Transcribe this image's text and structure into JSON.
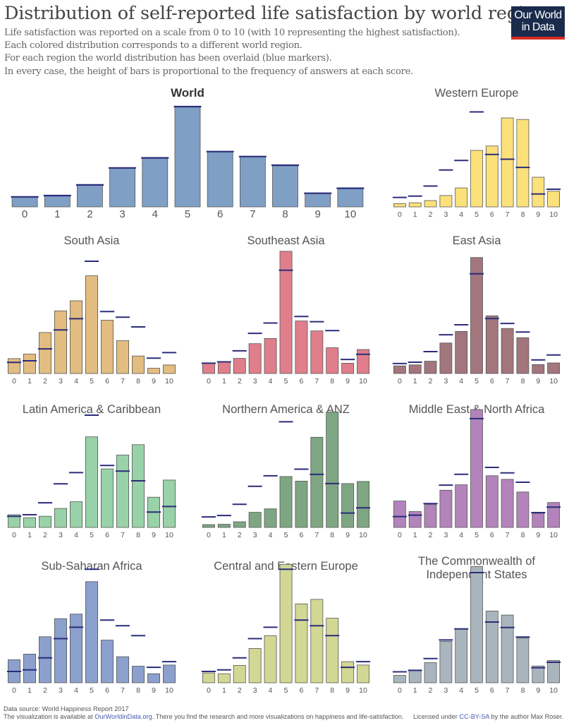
{
  "header": {
    "title": "Distribution of self-reported life satisfaction by world region",
    "subtitle_lines": [
      "Life satisfaction was reported on a scale from 0 to 10 (with 10 representing the highest satisfaction).",
      "Each colored distribution corresponds to a different world region.",
      "For each region the world distribution has been overlaid (blue markers).",
      "In every case, the height of bars is proportional to the frequency of answers at each score."
    ],
    "logo_line1": "Our World",
    "logo_line2": "in Data"
  },
  "footer": {
    "source": "Data source: World Happiness Report 2017",
    "availability_prefix": "The visualization is available at ",
    "availability_link": "OurWorldinData.org",
    "availability_suffix": ". There you find the research and more visualizations on happiness and life-satisfaction.",
    "license_prefix": "Licensed under ",
    "license_link": "CC-BY-SA",
    "license_suffix": " by the author Max Roser."
  },
  "colors": {
    "world_marker": "#2b2c7a",
    "bar_stroke": "#555555"
  },
  "chart_data": [
    {
      "type": "bar",
      "title": "World",
      "categories": [
        "0",
        "1",
        "2",
        "3",
        "4",
        "5",
        "6",
        "7",
        "8",
        "9",
        "10"
      ],
      "color": "#7f9fc5",
      "values": [
        3.0,
        3.4,
        6.6,
        11.7,
        14.7,
        30.1,
        16.6,
        15.1,
        12.5,
        4.1,
        5.6
      ],
      "world_values": [
        3.0,
        3.4,
        6.6,
        11.7,
        14.7,
        30.1,
        16.6,
        15.1,
        12.5,
        4.1,
        5.6
      ],
      "ylim": [
        0,
        32
      ]
    },
    {
      "type": "bar",
      "title": "Western Europe",
      "categories": [
        "0",
        "1",
        "2",
        "3",
        "4",
        "5",
        "6",
        "7",
        "8",
        "9",
        "10"
      ],
      "color": "#fce17a",
      "values": [
        1.0,
        1.3,
        2.0,
        3.6,
        6.0,
        17.9,
        19.3,
        28.2,
        27.7,
        9.4,
        5.0
      ],
      "world_values": [
        3.0,
        3.4,
        6.6,
        11.7,
        14.7,
        30.1,
        16.6,
        15.1,
        12.5,
        4.1,
        5.6
      ],
      "ylim": [
        0,
        32
      ]
    },
    {
      "type": "bar",
      "title": "South Asia",
      "categories": [
        "0",
        "1",
        "2",
        "3",
        "4",
        "5",
        "6",
        "7",
        "8",
        "9",
        "10"
      ],
      "color": "#e3bc81",
      "values": [
        4.0,
        5.2,
        11.0,
        16.8,
        19.5,
        26.2,
        14.3,
        8.8,
        4.7,
        1.4,
        2.3
      ],
      "world_values": [
        3.0,
        3.4,
        6.6,
        11.7,
        14.7,
        30.1,
        16.6,
        15.1,
        12.5,
        4.1,
        5.6
      ],
      "ylim": [
        0,
        32
      ]
    },
    {
      "type": "bar",
      "title": "Southeast Asia",
      "categories": [
        "0",
        "1",
        "2",
        "3",
        "4",
        "5",
        "6",
        "7",
        "8",
        "9",
        "10"
      ],
      "color": "#e07e8c",
      "values": [
        3.0,
        3.4,
        4.4,
        8.7,
        10.2,
        35.6,
        15.3,
        12.4,
        7.5,
        3.0,
        7.0
      ],
      "world_values": [
        3.0,
        3.4,
        6.6,
        11.7,
        14.7,
        30.1,
        16.6,
        15.1,
        12.5,
        4.1,
        5.6
      ],
      "ylim": [
        0,
        36
      ]
    },
    {
      "type": "bar",
      "title": "East Asia",
      "categories": [
        "0",
        "1",
        "2",
        "3",
        "4",
        "5",
        "6",
        "7",
        "8",
        "9",
        "10"
      ],
      "color": "#a2767c",
      "values": [
        2.3,
        2.6,
        3.7,
        9.2,
        12.7,
        35.0,
        17.4,
        13.6,
        10.8,
        2.7,
        3.2
      ],
      "world_values": [
        3.0,
        3.4,
        6.6,
        11.7,
        14.7,
        30.1,
        16.6,
        15.1,
        12.5,
        4.1,
        5.6
      ],
      "ylim": [
        0,
        36
      ]
    },
    {
      "type": "bar",
      "title": "Latin America & Caribbean",
      "categories": [
        "0",
        "1",
        "2",
        "3",
        "4",
        "5",
        "6",
        "7",
        "8",
        "9",
        "10"
      ],
      "color": "#99d2a8",
      "values": [
        3.4,
        2.6,
        3.0,
        5.1,
        6.9,
        24.3,
        15.7,
        19.4,
        22.2,
        8.1,
        12.7
      ],
      "world_values": [
        3.0,
        3.4,
        6.6,
        11.7,
        14.7,
        30.1,
        16.6,
        15.1,
        12.5,
        4.1,
        5.6
      ],
      "ylim": [
        0,
        32
      ]
    },
    {
      "type": "bar",
      "title": "Northern America & ANZ",
      "categories": [
        "0",
        "1",
        "2",
        "3",
        "4",
        "5",
        "6",
        "7",
        "8",
        "9",
        "10"
      ],
      "color": "#7ea683",
      "values": [
        0.8,
        0.9,
        1.6,
        4.3,
        5.3,
        14.5,
        13.2,
        25.7,
        32.9,
        12.5,
        13.1
      ],
      "world_values": [
        3.0,
        3.4,
        6.6,
        11.7,
        14.7,
        30.1,
        16.6,
        15.1,
        12.5,
        4.1,
        5.6
      ],
      "ylim": [
        0,
        34
      ]
    },
    {
      "type": "bar",
      "title": "Middle East & North Africa",
      "categories": [
        "0",
        "1",
        "2",
        "3",
        "4",
        "5",
        "6",
        "7",
        "8",
        "9",
        "10"
      ],
      "color": "#b284bb",
      "values": [
        7.3,
        4.4,
        6.3,
        10.3,
        11.8,
        32.6,
        14.3,
        13.3,
        9.8,
        3.9,
        6.9
      ],
      "world_values": [
        3.0,
        3.4,
        6.6,
        11.7,
        14.7,
        30.1,
        16.6,
        15.1,
        12.5,
        4.1,
        5.6
      ],
      "ylim": [
        0,
        33
      ]
    },
    {
      "type": "bar",
      "title": "Sub-Saharan Africa",
      "categories": [
        "0",
        "1",
        "2",
        "3",
        "4",
        "5",
        "6",
        "7",
        "8",
        "9",
        "10"
      ],
      "color": "#8ba0cd",
      "values": [
        6.1,
        7.6,
        12.2,
        17.0,
        18.2,
        26.8,
        11.3,
        6.9,
        4.4,
        2.4,
        4.7
      ],
      "world_values": [
        3.0,
        3.4,
        6.6,
        11.7,
        14.7,
        30.1,
        16.6,
        15.1,
        12.5,
        4.1,
        5.6
      ],
      "ylim": [
        0,
        32
      ]
    },
    {
      "type": "bar",
      "title": "Central and Eastern Europe",
      "categories": [
        "0",
        "1",
        "2",
        "3",
        "4",
        "5",
        "6",
        "7",
        "8",
        "9",
        "10"
      ],
      "color": "#d2d794",
      "values": [
        2.6,
        2.4,
        4.6,
        9.1,
        12.5,
        31.4,
        20.9,
        22.1,
        17.1,
        5.6,
        4.7
      ],
      "world_values": [
        3.0,
        3.4,
        6.6,
        11.7,
        14.7,
        30.1,
        16.6,
        15.1,
        12.5,
        4.1,
        5.6
      ],
      "ylim": [
        0,
        32
      ]
    },
    {
      "type": "bar",
      "title": "The Commonwealth of Independent States",
      "categories": [
        "0",
        "1",
        "2",
        "3",
        "4",
        "5",
        "6",
        "7",
        "8",
        "9",
        "10"
      ],
      "color": "#a9b5bd",
      "values": [
        2.0,
        3.3,
        5.5,
        11.3,
        14.8,
        31.8,
        19.6,
        18.5,
        12.2,
        4.6,
        6.1
      ],
      "world_values": [
        3.0,
        3.4,
        6.6,
        11.7,
        14.7,
        30.1,
        16.6,
        15.1,
        12.5,
        4.1,
        5.6
      ],
      "ylim": [
        0,
        33
      ]
    }
  ]
}
